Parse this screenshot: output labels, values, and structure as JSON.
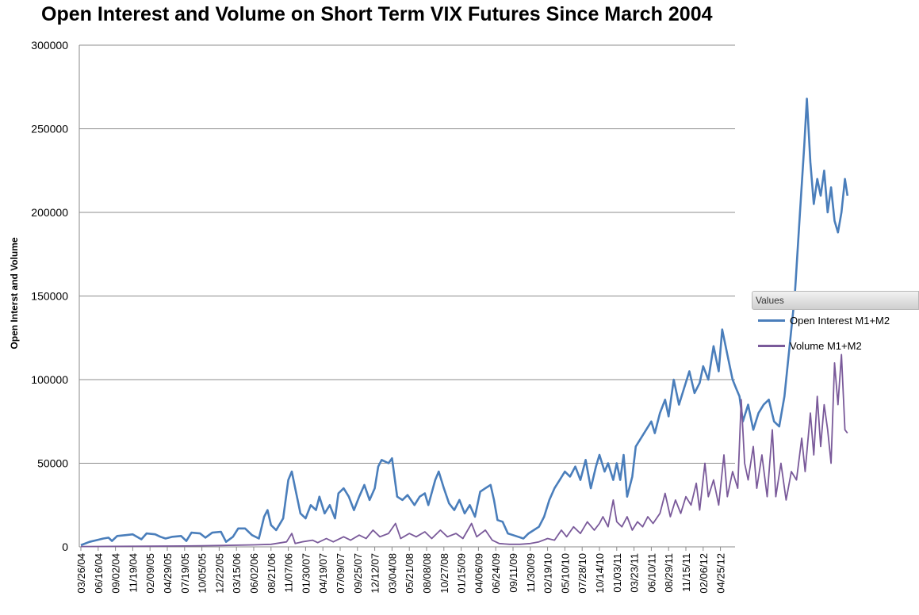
{
  "chart_data": {
    "type": "line",
    "title": "Open Interest and Volume on Short Term VIX Futures Since March 2004",
    "ylabel": "Open Interst and Volume",
    "xlabel": "",
    "ylim": [
      0,
      300000
    ],
    "yticks": [
      0,
      50000,
      100000,
      150000,
      200000,
      250000,
      300000
    ],
    "grid": true,
    "legend_position": "right",
    "legend_title": "Values",
    "x_tick_labels": [
      "03/26/04",
      "06/16/04",
      "09/02/04",
      "11/19/04",
      "02/09/05",
      "04/29/05",
      "07/19/05",
      "10/05/05",
      "12/22/05",
      "03/15/06",
      "06/02/06",
      "08/21/06",
      "11/07/06",
      "01/30/07",
      "04/19/07",
      "07/09/07",
      "09/25/07",
      "12/12/07",
      "03/04/08",
      "05/21/08",
      "08/08/08",
      "10/27/08",
      "01/15/09",
      "04/06/09",
      "06/24/09",
      "09/11/09",
      "11/30/09",
      "02/19/10",
      "05/10/10",
      "07/28/10",
      "10/14/10",
      "01/03/11",
      "03/23/11",
      "06/10/11",
      "08/29/11",
      "11/15/11",
      "02/06/12",
      "04/25/12"
    ],
    "x_extent_ticks": 39.4,
    "series": [
      {
        "name": "Open Interest M1+M2",
        "color": "#4a7ebb",
        "points": [
          [
            0,
            1000
          ],
          [
            0.5,
            3000
          ],
          [
            0.9,
            4000
          ],
          [
            1.3,
            5000
          ],
          [
            1.6,
            5500
          ],
          [
            1.8,
            3500
          ],
          [
            2.1,
            6500
          ],
          [
            2.6,
            7000
          ],
          [
            3,
            7500
          ],
          [
            3.5,
            4500
          ],
          [
            3.8,
            8000
          ],
          [
            4.3,
            7500
          ],
          [
            4.6,
            6000
          ],
          [
            4.9,
            5000
          ],
          [
            5.3,
            6000
          ],
          [
            5.8,
            6500
          ],
          [
            6.1,
            3500
          ],
          [
            6.4,
            8500
          ],
          [
            6.9,
            8000
          ],
          [
            7.2,
            5500
          ],
          [
            7.6,
            8500
          ],
          [
            8.1,
            9000
          ],
          [
            8.4,
            3000
          ],
          [
            8.8,
            6000
          ],
          [
            9.1,
            11000
          ],
          [
            9.5,
            11000
          ],
          [
            9.9,
            7000
          ],
          [
            10.3,
            5000
          ],
          [
            10.6,
            18000
          ],
          [
            10.8,
            22000
          ],
          [
            11,
            13000
          ],
          [
            11.3,
            10000
          ],
          [
            11.7,
            17000
          ],
          [
            12,
            40000
          ],
          [
            12.2,
            45000
          ],
          [
            12.4,
            35000
          ],
          [
            12.7,
            20000
          ],
          [
            13,
            17000
          ],
          [
            13.3,
            25000
          ],
          [
            13.6,
            22000
          ],
          [
            13.8,
            30000
          ],
          [
            14.1,
            20000
          ],
          [
            14.4,
            25000
          ],
          [
            14.7,
            17000
          ],
          [
            14.9,
            32000
          ],
          [
            15.2,
            35000
          ],
          [
            15.5,
            30000
          ],
          [
            15.8,
            22000
          ],
          [
            16.1,
            30000
          ],
          [
            16.4,
            37000
          ],
          [
            16.7,
            28000
          ],
          [
            17,
            35000
          ],
          [
            17.2,
            48000
          ],
          [
            17.4,
            52000
          ],
          [
            17.8,
            50000
          ],
          [
            18,
            53000
          ],
          [
            18.3,
            30000
          ],
          [
            18.6,
            28000
          ],
          [
            18.9,
            31000
          ],
          [
            19.3,
            25000
          ],
          [
            19.6,
            30000
          ],
          [
            19.9,
            32000
          ],
          [
            20.1,
            25000
          ],
          [
            20.5,
            40000
          ],
          [
            20.7,
            45000
          ],
          [
            21,
            35000
          ],
          [
            21.3,
            26000
          ],
          [
            21.6,
            22000
          ],
          [
            21.9,
            28000
          ],
          [
            22.2,
            20000
          ],
          [
            22.5,
            25000
          ],
          [
            22.8,
            18000
          ],
          [
            23.1,
            33000
          ],
          [
            23.4,
            35000
          ],
          [
            23.7,
            37000
          ],
          [
            23.9,
            28000
          ],
          [
            24.1,
            16000
          ],
          [
            24.4,
            15000
          ],
          [
            24.7,
            8000
          ],
          [
            25,
            7000
          ],
          [
            25.3,
            6000
          ],
          [
            25.6,
            5000
          ],
          [
            25.9,
            8000
          ],
          [
            26.2,
            10000
          ],
          [
            26.5,
            12000
          ],
          [
            26.8,
            18000
          ],
          [
            27.1,
            28000
          ],
          [
            27.4,
            35000
          ],
          [
            27.7,
            40000
          ],
          [
            28,
            45000
          ],
          [
            28.3,
            42000
          ],
          [
            28.6,
            48000
          ],
          [
            28.9,
            40000
          ],
          [
            29.2,
            52000
          ],
          [
            29.5,
            35000
          ],
          [
            29.8,
            48000
          ],
          [
            30,
            55000
          ],
          [
            30.3,
            45000
          ],
          [
            30.5,
            50000
          ],
          [
            30.8,
            40000
          ],
          [
            31,
            50000
          ],
          [
            31.2,
            40000
          ],
          [
            31.4,
            55000
          ],
          [
            31.6,
            30000
          ],
          [
            31.9,
            42000
          ],
          [
            32.1,
            60000
          ],
          [
            32.4,
            65000
          ],
          [
            32.7,
            70000
          ],
          [
            33,
            75000
          ],
          [
            33.2,
            68000
          ],
          [
            33.5,
            80000
          ],
          [
            33.8,
            88000
          ],
          [
            34,
            78000
          ],
          [
            34.3,
            100000
          ],
          [
            34.6,
            85000
          ],
          [
            34.9,
            95000
          ],
          [
            35.2,
            105000
          ],
          [
            35.5,
            92000
          ],
          [
            35.8,
            98000
          ],
          [
            36,
            108000
          ],
          [
            36.3,
            100000
          ],
          [
            36.6,
            120000
          ],
          [
            36.9,
            105000
          ],
          [
            37.1,
            130000
          ],
          [
            37.4,
            115000
          ],
          [
            37.7,
            100000
          ],
          [
            37.9,
            95000
          ],
          [
            38.1,
            90000
          ],
          [
            38.3,
            75000
          ],
          [
            38.6,
            85000
          ],
          [
            38.9,
            70000
          ],
          [
            39.2,
            80000
          ],
          [
            39.5,
            85000
          ],
          [
            39.8,
            88000
          ],
          [
            40.1,
            75000
          ],
          [
            40.4,
            72000
          ],
          [
            40.7,
            90000
          ],
          [
            41,
            120000
          ],
          [
            41.3,
            150000
          ],
          [
            41.6,
            200000
          ],
          [
            41.85,
            240000
          ],
          [
            42,
            268000
          ],
          [
            42.2,
            230000
          ],
          [
            42.4,
            205000
          ],
          [
            42.6,
            220000
          ],
          [
            42.8,
            210000
          ],
          [
            43,
            225000
          ],
          [
            43.2,
            200000
          ],
          [
            43.4,
            215000
          ],
          [
            43.6,
            195000
          ],
          [
            43.8,
            188000
          ],
          [
            44,
            200000
          ],
          [
            44.2,
            220000
          ],
          [
            44.35,
            210000
          ]
        ]
      },
      {
        "name": "Volume M1+M2",
        "color": "#7a5a9a",
        "points": [
          [
            0,
            200
          ],
          [
            2,
            300
          ],
          [
            4,
            400
          ],
          [
            6,
            500
          ],
          [
            8,
            800
          ],
          [
            10,
            1200
          ],
          [
            11,
            1500
          ],
          [
            11.9,
            3000
          ],
          [
            12.2,
            8000
          ],
          [
            12.4,
            2000
          ],
          [
            12.8,
            3000
          ],
          [
            13.4,
            4000
          ],
          [
            13.7,
            2500
          ],
          [
            14.2,
            5000
          ],
          [
            14.6,
            3000
          ],
          [
            15.2,
            6000
          ],
          [
            15.6,
            4000
          ],
          [
            16.1,
            7000
          ],
          [
            16.5,
            5000
          ],
          [
            16.9,
            10000
          ],
          [
            17.3,
            6000
          ],
          [
            17.8,
            8000
          ],
          [
            18.2,
            14000
          ],
          [
            18.5,
            5000
          ],
          [
            19,
            8000
          ],
          [
            19.4,
            6000
          ],
          [
            19.9,
            9000
          ],
          [
            20.3,
            5000
          ],
          [
            20.8,
            10000
          ],
          [
            21.2,
            6000
          ],
          [
            21.7,
            8000
          ],
          [
            22.1,
            5000
          ],
          [
            22.6,
            14000
          ],
          [
            22.9,
            6000
          ],
          [
            23.4,
            10000
          ],
          [
            23.8,
            4000
          ],
          [
            24.2,
            2000
          ],
          [
            24.8,
            1500
          ],
          [
            25.4,
            1500
          ],
          [
            26,
            2000
          ],
          [
            26.5,
            3000
          ],
          [
            27,
            5000
          ],
          [
            27.4,
            4000
          ],
          [
            27.8,
            10000
          ],
          [
            28.1,
            6000
          ],
          [
            28.5,
            12000
          ],
          [
            28.9,
            8000
          ],
          [
            29.3,
            15000
          ],
          [
            29.7,
            10000
          ],
          [
            30,
            14000
          ],
          [
            30.2,
            18000
          ],
          [
            30.5,
            12000
          ],
          [
            30.8,
            28000
          ],
          [
            31,
            15000
          ],
          [
            31.3,
            12000
          ],
          [
            31.6,
            18000
          ],
          [
            31.9,
            10000
          ],
          [
            32.2,
            15000
          ],
          [
            32.5,
            12000
          ],
          [
            32.8,
            18000
          ],
          [
            33.1,
            14000
          ],
          [
            33.5,
            20000
          ],
          [
            33.8,
            32000
          ],
          [
            34.1,
            18000
          ],
          [
            34.4,
            28000
          ],
          [
            34.7,
            20000
          ],
          [
            35,
            30000
          ],
          [
            35.3,
            25000
          ],
          [
            35.6,
            38000
          ],
          [
            35.8,
            22000
          ],
          [
            36.1,
            50000
          ],
          [
            36.3,
            30000
          ],
          [
            36.6,
            40000
          ],
          [
            36.9,
            25000
          ],
          [
            37.2,
            55000
          ],
          [
            37.4,
            30000
          ],
          [
            37.7,
            45000
          ],
          [
            38,
            35000
          ],
          [
            38.2,
            88000
          ],
          [
            38.4,
            50000
          ],
          [
            38.6,
            40000
          ],
          [
            38.9,
            60000
          ],
          [
            39.1,
            35000
          ],
          [
            39.4,
            55000
          ],
          [
            39.7,
            30000
          ],
          [
            40,
            70000
          ],
          [
            40.2,
            30000
          ],
          [
            40.5,
            50000
          ],
          [
            40.8,
            28000
          ],
          [
            41.1,
            45000
          ],
          [
            41.4,
            40000
          ],
          [
            41.7,
            65000
          ],
          [
            41.9,
            45000
          ],
          [
            42.2,
            80000
          ],
          [
            42.4,
            55000
          ],
          [
            42.6,
            90000
          ],
          [
            42.8,
            60000
          ],
          [
            43,
            85000
          ],
          [
            43.2,
            70000
          ],
          [
            43.4,
            50000
          ],
          [
            43.6,
            110000
          ],
          [
            43.8,
            85000
          ],
          [
            44,
            115000
          ],
          [
            44.2,
            70000
          ],
          [
            44.35,
            68000
          ]
        ]
      }
    ]
  }
}
